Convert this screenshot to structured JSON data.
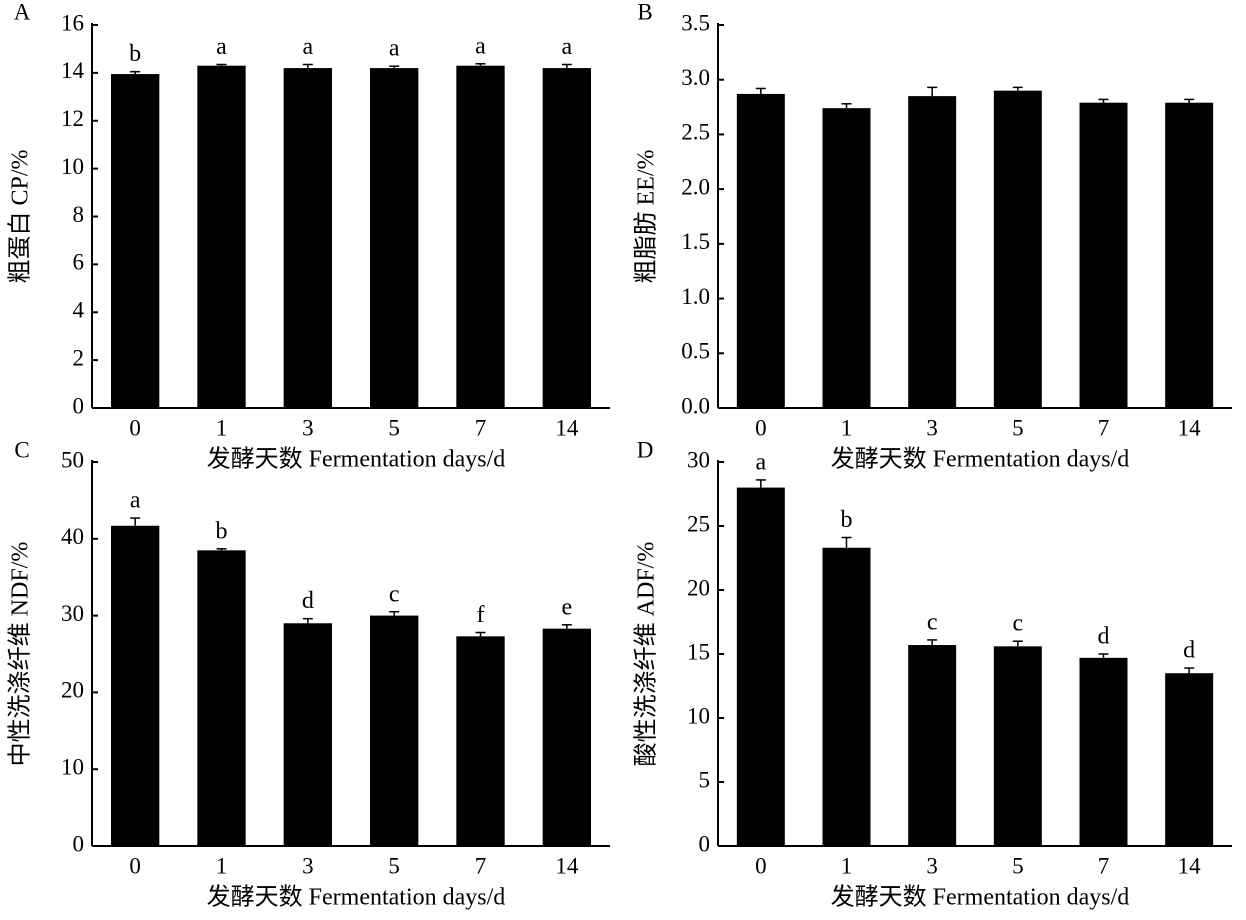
{
  "chart_data": [
    {
      "type": "bar",
      "panel": "A",
      "ylabel": "粗蛋白 CP/%",
      "xlabel": "发酵天数 Fermentation days/d",
      "categories": [
        "0",
        "1",
        "3",
        "5",
        "7",
        "14"
      ],
      "values": [
        13.95,
        14.3,
        14.2,
        14.2,
        14.3,
        14.2
      ],
      "errors": [
        0.1,
        0.05,
        0.15,
        0.08,
        0.08,
        0.15
      ],
      "annotations": [
        "b",
        "a",
        "a",
        "a",
        "a",
        "a"
      ],
      "color": "#000000",
      "ylim": [
        0,
        16
      ],
      "yticks": [
        0,
        2,
        4,
        6,
        8,
        10,
        12,
        14,
        16
      ]
    },
    {
      "type": "bar",
      "panel": "B",
      "ylabel": "粗脂肪 EE/%",
      "xlabel": "发酵天数 Fermentation days/d",
      "categories": [
        "0",
        "1",
        "3",
        "5",
        "7",
        "14"
      ],
      "values": [
        2.87,
        2.74,
        2.85,
        2.9,
        2.79,
        2.79
      ],
      "errors": [
        0.05,
        0.04,
        0.08,
        0.03,
        0.03,
        0.03
      ],
      "color": "#000000",
      "ylim": [
        0,
        3.5
      ],
      "yticks": [
        {
          "value": 0,
          "label": "0.0"
        },
        0.5,
        {
          "value": 1,
          "label": "1.0"
        },
        1.5,
        {
          "value": 2,
          "label": "2.0"
        },
        2.5,
        {
          "value": 3,
          "label": "3.0"
        },
        3.5
      ]
    },
    {
      "type": "bar",
      "panel": "C",
      "ylabel": "中性洗涤纤维 NDF/%",
      "xlabel": "发酵天数 Fermentation days/d",
      "categories": [
        "0",
        "1",
        "3",
        "5",
        "7",
        "14"
      ],
      "values": [
        41.7,
        38.5,
        29.0,
        30.0,
        27.3,
        28.3
      ],
      "errors": [
        1.0,
        0.2,
        0.6,
        0.5,
        0.5,
        0.5
      ],
      "annotations": [
        "a",
        "b",
        "d",
        "c",
        "f",
        "e"
      ],
      "color": "#000000",
      "ylim": [
        0,
        50
      ],
      "yticks": [
        0,
        10,
        20,
        30,
        40,
        50
      ]
    },
    {
      "type": "bar",
      "panel": "D",
      "ylabel": "酸性洗涤纤维 ADF/%",
      "xlabel": "发酵天数 Fermentation days/d",
      "categories": [
        "0",
        "1",
        "3",
        "5",
        "7",
        "14"
      ],
      "values": [
        28.0,
        23.3,
        15.7,
        15.6,
        14.7,
        13.5
      ],
      "errors": [
        0.6,
        0.8,
        0.4,
        0.4,
        0.3,
        0.4
      ],
      "annotations": [
        "a",
        "b",
        "c",
        "c",
        "d",
        "d"
      ],
      "color": "#000000",
      "ylim": [
        0,
        30
      ],
      "yticks": [
        0,
        5,
        10,
        15,
        20,
        25,
        30
      ]
    }
  ]
}
